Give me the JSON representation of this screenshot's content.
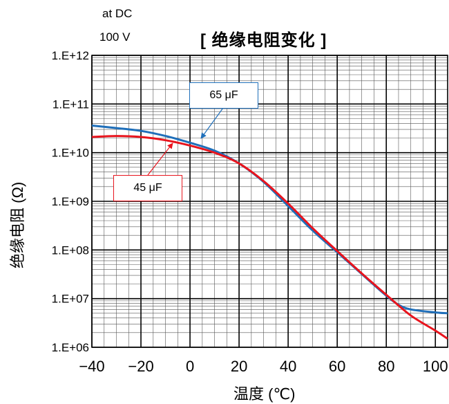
{
  "header": {
    "condition_line1": "at DC",
    "condition_line2": "100 V",
    "title": "[ 绝缘电阻变化 ]"
  },
  "colors": {
    "series_65uF": "#1f6fba",
    "series_45uF": "#e8141d",
    "grid_major": "#000000",
    "grid_minor": "#555555"
  },
  "chart_data": {
    "type": "line",
    "title": "[ 绝缘电阻变化 ]",
    "xlabel": "温度 (℃)",
    "ylabel": "绝缘电阻 (Ω)",
    "xlim": [
      -40,
      105
    ],
    "ylim": [
      1000000,
      1000000000000
    ],
    "yscale": "log",
    "grid": true,
    "x_ticks": [
      -40,
      -20,
      0,
      20,
      40,
      60,
      80,
      100
    ],
    "x_tick_labels": [
      "−40",
      "−20",
      "0",
      "20",
      "40",
      "60",
      "80",
      "100"
    ],
    "y_ticks": [
      1000000,
      10000000,
      100000000,
      1000000000,
      10000000000,
      100000000000,
      1000000000000
    ],
    "y_tick_labels": [
      "1.E+06",
      "1.E+07",
      "1.E+08",
      "1.E+09",
      "1.E+10",
      "1.E+11",
      "1.E+12"
    ],
    "series": [
      {
        "name": "65 μF",
        "color": "#1f6fba",
        "x": [
          -40,
          -30,
          -20,
          -10,
          0,
          10,
          20,
          30,
          40,
          50,
          60,
          70,
          80,
          85,
          90,
          100,
          105
        ],
        "y": [
          36000000000,
          32000000000,
          28000000000,
          22000000000,
          16000000000,
          11000000000,
          6000000000,
          2500000000,
          800000000,
          250000000,
          90000000,
          32000000,
          11500000,
          7500000,
          6000000,
          5200000,
          5000000
        ]
      },
      {
        "name": "45 μF",
        "color": "#e8141d",
        "x": [
          -40,
          -30,
          -20,
          -10,
          0,
          10,
          20,
          30,
          40,
          50,
          60,
          70,
          80,
          90,
          100,
          105
        ],
        "y": [
          21000000000,
          22000000000,
          21000000000,
          18000000000,
          14000000000,
          10000000000,
          6000000000,
          2600000000,
          900000000,
          280000000,
          95000000,
          33000000,
          12000000,
          4500000,
          2200000,
          1500000
        ]
      }
    ],
    "annotations": [
      {
        "text": "65 μF",
        "series": "65 μF"
      },
      {
        "text": "45 μF",
        "series": "45 μF"
      }
    ]
  }
}
